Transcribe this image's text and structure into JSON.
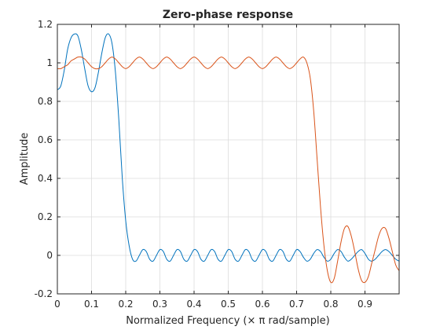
{
  "chart_data": {
    "type": "line",
    "title": "Zero-phase response",
    "xlabel": "Normalized Frequency (× π rad/sample)",
    "ylabel": "Amplitude",
    "xlim": [
      0,
      1
    ],
    "ylim": [
      -0.2,
      1.2
    ],
    "xticks": [
      "0",
      "0.1",
      "0.2",
      "0.3",
      "0.4",
      "0.5",
      "0.6",
      "0.7",
      "0.8",
      "0.9"
    ],
    "yticks": [
      "-0.2",
      "0",
      "0.2",
      "0.4",
      "0.6",
      "0.8",
      "1",
      "1.2"
    ],
    "grid": true,
    "series": [
      {
        "color": "#0072bd",
        "x": [
          0,
          0.01,
          0.02,
          0.03,
          0.04,
          0.05,
          0.06,
          0.07,
          0.08,
          0.09,
          0.1,
          0.11,
          0.12,
          0.13,
          0.14,
          0.15,
          0.16,
          0.17,
          0.18,
          0.19,
          0.2,
          0.21,
          0.22,
          0.23,
          0.24,
          0.25,
          0.26,
          0.27,
          0.28,
          0.29,
          0.3,
          0.31,
          0.32,
          0.33,
          0.34,
          0.35,
          0.36,
          0.37,
          0.38,
          0.39,
          0.4,
          0.41,
          0.42,
          0.43,
          0.44,
          0.45,
          0.46,
          0.47,
          0.48,
          0.49,
          0.5,
          0.51,
          0.52,
          0.53,
          0.54,
          0.55,
          0.56,
          0.57,
          0.58,
          0.59,
          0.6,
          0.61,
          0.62,
          0.63,
          0.64,
          0.65,
          0.66,
          0.67,
          0.68,
          0.69,
          0.7,
          0.71,
          0.72,
          0.73,
          0.74,
          0.75,
          0.76,
          0.77,
          0.78,
          0.79,
          0.8,
          0.81,
          0.82,
          0.83,
          0.84,
          0.85,
          0.86,
          0.87,
          0.88,
          0.89,
          0.9,
          0.91,
          0.92,
          0.93,
          0.94,
          0.95,
          0.96,
          0.97,
          0.98,
          0.99,
          1.0
        ],
        "y": [
          0.86,
          0.88,
          0.96,
          1.07,
          1.13,
          1.15,
          1.14,
          1.07,
          0.97,
          0.88,
          0.85,
          0.87,
          0.95,
          1.05,
          1.13,
          1.15,
          1.1,
          0.95,
          0.7,
          0.4,
          0.18,
          0.05,
          -0.02,
          -0.03,
          0.0,
          0.03,
          0.02,
          -0.02,
          -0.03,
          0.0,
          0.03,
          0.02,
          -0.02,
          -0.03,
          0.0,
          0.03,
          0.02,
          -0.02,
          -0.03,
          0.0,
          0.03,
          0.02,
          -0.02,
          -0.03,
          0.0,
          0.03,
          0.02,
          -0.02,
          -0.03,
          0.0,
          0.03,
          0.02,
          -0.02,
          -0.03,
          0.0,
          0.03,
          0.02,
          -0.02,
          -0.03,
          0.0,
          0.03,
          0.02,
          -0.02,
          -0.03,
          0.0,
          0.03,
          0.02,
          -0.02,
          -0.03,
          0.0,
          0.03,
          0.02,
          -0.01,
          -0.03,
          -0.02,
          0.01,
          0.03,
          0.02,
          -0.01,
          -0.03,
          -0.02,
          0.01,
          0.03,
          0.02,
          -0.01,
          -0.03,
          -0.02,
          0.0,
          0.02,
          0.03,
          0.01,
          -0.02,
          -0.03,
          -0.02,
          0.0,
          0.02,
          0.03,
          0.02,
          0.0,
          -0.02,
          -0.03
        ]
      },
      {
        "color": "#d95319",
        "x": [
          0,
          0.01,
          0.02,
          0.03,
          0.04,
          0.05,
          0.06,
          0.07,
          0.08,
          0.09,
          0.1,
          0.11,
          0.12,
          0.13,
          0.14,
          0.15,
          0.16,
          0.17,
          0.18,
          0.19,
          0.2,
          0.21,
          0.22,
          0.23,
          0.24,
          0.25,
          0.26,
          0.27,
          0.28,
          0.29,
          0.3,
          0.31,
          0.32,
          0.33,
          0.34,
          0.35,
          0.36,
          0.37,
          0.38,
          0.39,
          0.4,
          0.41,
          0.42,
          0.43,
          0.44,
          0.45,
          0.46,
          0.47,
          0.48,
          0.49,
          0.5,
          0.51,
          0.52,
          0.53,
          0.54,
          0.55,
          0.56,
          0.57,
          0.58,
          0.59,
          0.6,
          0.61,
          0.62,
          0.63,
          0.64,
          0.65,
          0.66,
          0.67,
          0.68,
          0.69,
          0.7,
          0.71,
          0.72,
          0.73,
          0.74,
          0.75,
          0.76,
          0.77,
          0.78,
          0.79,
          0.8,
          0.81,
          0.82,
          0.83,
          0.84,
          0.85,
          0.86,
          0.87,
          0.88,
          0.89,
          0.9,
          0.91,
          0.92,
          0.93,
          0.94,
          0.95,
          0.96,
          0.97,
          0.98,
          0.99,
          1.0
        ],
        "y": [
          0.97,
          0.97,
          0.98,
          0.99,
          1.01,
          1.02,
          1.03,
          1.03,
          1.02,
          1.0,
          0.98,
          0.97,
          0.97,
          0.98,
          1.0,
          1.02,
          1.03,
          1.02,
          1.0,
          0.98,
          0.97,
          0.98,
          1.0,
          1.02,
          1.03,
          1.02,
          1.0,
          0.98,
          0.97,
          0.98,
          1.0,
          1.02,
          1.03,
          1.02,
          1.0,
          0.98,
          0.97,
          0.98,
          1.0,
          1.02,
          1.03,
          1.02,
          1.0,
          0.98,
          0.97,
          0.98,
          1.0,
          1.02,
          1.03,
          1.02,
          1.0,
          0.98,
          0.97,
          0.98,
          1.0,
          1.02,
          1.03,
          1.02,
          1.0,
          0.98,
          0.97,
          0.98,
          1.0,
          1.02,
          1.03,
          1.02,
          1.0,
          0.98,
          0.97,
          0.98,
          1.0,
          1.02,
          1.03,
          1.0,
          0.92,
          0.75,
          0.5,
          0.25,
          0.05,
          -0.08,
          -0.14,
          -0.12,
          -0.03,
          0.07,
          0.14,
          0.15,
          0.1,
          0.02,
          -0.07,
          -0.13,
          -0.14,
          -0.11,
          -0.04,
          0.03,
          0.1,
          0.14,
          0.14,
          0.09,
          0.02,
          -0.05,
          -0.08
        ]
      }
    ]
  }
}
